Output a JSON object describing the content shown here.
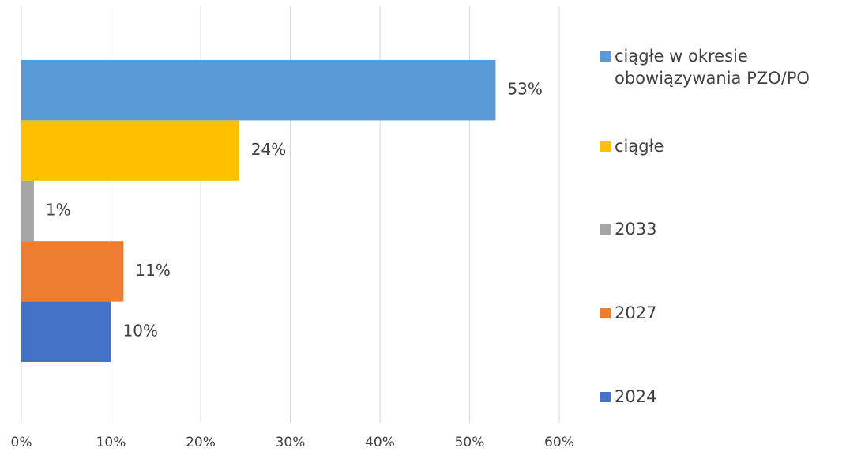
{
  "chart_data": {
    "type": "bar",
    "orientation": "horizontal",
    "series": [
      {
        "name": "ciągłe w okresie obowiązywania PZO/PO",
        "color": "#5b9bd5",
        "values": [
          52.9
        ],
        "value_labels": [
          "53%"
        ]
      },
      {
        "name": "ciągłe",
        "color": "#ffc000",
        "values": [
          24.3
        ],
        "value_labels": [
          "24%"
        ]
      },
      {
        "name": "2033",
        "color": "#a5a5a5",
        "values": [
          1.4
        ],
        "value_labels": [
          "1%"
        ]
      },
      {
        "name": "2027",
        "color": "#ed7d31",
        "values": [
          11.4
        ],
        "value_labels": [
          "11%"
        ]
      },
      {
        "name": "2024",
        "color": "#4472c4",
        "values": [
          10.0
        ],
        "value_labels": [
          "10%"
        ]
      }
    ],
    "xlim": [
      0,
      60
    ],
    "xticks": [
      {
        "value": 0,
        "label": "0%"
      },
      {
        "value": 10,
        "label": "10%"
      },
      {
        "value": 20,
        "label": "20%"
      },
      {
        "value": 30,
        "label": "30%"
      },
      {
        "value": 40,
        "label": "40%"
      },
      {
        "value": 50,
        "label": "50%"
      },
      {
        "value": 60,
        "label": "60%"
      }
    ],
    "grid": true,
    "legend": "right"
  }
}
